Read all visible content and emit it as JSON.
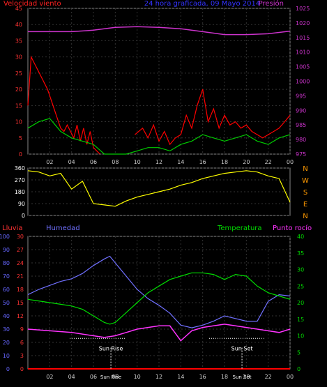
{
  "chart_data": [
    {
      "type": "line",
      "title": "24 hora graficada, 09 Mayo 2014",
      "left_axis_label": "Velocidad viento",
      "right_axis_label": "Presión",
      "left_axis_ticks": [
        "0",
        "5",
        "10",
        "15",
        "20",
        "25",
        "30",
        "35",
        "40",
        "45"
      ],
      "right_axis_ticks": [
        "975",
        "980",
        "985",
        "990",
        "995",
        "1000",
        "1005",
        "1010",
        "1015",
        "1020",
        "1025"
      ],
      "x_tick_labels": [
        "02",
        "04",
        "06",
        "08",
        "10",
        "12",
        "14",
        "16",
        "18",
        "20",
        "22",
        "00"
      ],
      "ylim_left": [
        0,
        45
      ],
      "ylim_right": [
        975,
        1025
      ],
      "colors": {
        "gust": "#ff0000",
        "wind_avg": "#00cc00",
        "wind": "#ffffff",
        "pressure": "#cc33cc"
      },
      "series": [
        {
          "key": "gust",
          "x": [
            0,
            0.3,
            0.6,
            0.9,
            1.2,
            1.5,
            1.8,
            2.1,
            2.4,
            2.7,
            3.0,
            3.3,
            3.6,
            3.9,
            4.2,
            4.5,
            4.8,
            5.1,
            5.4,
            5.7,
            6.0,
            6.3,
            6.6
          ],
          "values": [
            15,
            30,
            28,
            26,
            24,
            22,
            20,
            17,
            14,
            11,
            8,
            7,
            9,
            7,
            5,
            9,
            4,
            8,
            3,
            7,
            2,
            1,
            0
          ]
        },
        {
          "key": "wind_avg",
          "x": [
            0,
            1,
            2,
            2.5,
            3,
            4,
            5,
            6,
            7,
            8,
            9,
            10,
            11,
            12,
            13,
            14,
            15,
            16,
            17,
            18,
            19,
            20,
            21,
            22,
            23,
            24
          ],
          "values": [
            8,
            10,
            11,
            9,
            7,
            5,
            4,
            3,
            0,
            0,
            0,
            1,
            2,
            2,
            1,
            3,
            4,
            6,
            5,
            4,
            5,
            6,
            4,
            3,
            5,
            6
          ]
        },
        {
          "key": "gust_late",
          "x": [
            9.8,
            10.5,
            11,
            11.5,
            12,
            12.5,
            13,
            13.5,
            14,
            14.5,
            15,
            15.5,
            16,
            16.5,
            17,
            17.5,
            18,
            18.5,
            19,
            19.5,
            20,
            20.5,
            21,
            21.5,
            22,
            22.5,
            23,
            23.5,
            24
          ],
          "values": [
            6,
            8,
            5,
            9,
            4,
            7,
            3,
            5,
            6,
            12,
            8,
            15,
            20,
            10,
            14,
            8,
            12,
            9,
            10,
            8,
            9,
            7,
            6,
            5,
            6,
            7,
            8,
            10,
            12
          ]
        },
        {
          "key": "pressure",
          "x": [
            0,
            2,
            4,
            6,
            8,
            10,
            12,
            14,
            16,
            18,
            20,
            22,
            24
          ],
          "values": [
            1017,
            1017,
            1017,
            1017.5,
            1018.5,
            1018.7,
            1018.5,
            1018,
            1017,
            1016,
            1016,
            1016.3,
            1017.2
          ]
        }
      ]
    },
    {
      "type": "scatter",
      "ylim": [
        0,
        360
      ],
      "left_ticks": [
        "0",
        "90",
        "180",
        "270",
        "360"
      ],
      "right_labels": [
        "N",
        "W",
        "S",
        "E",
        "N"
      ],
      "color": "#ffff00",
      "direction_x": [
        0,
        1,
        2,
        3,
        4,
        5,
        6,
        7,
        8,
        9,
        10,
        11,
        12,
        13,
        14,
        15,
        16,
        17,
        18,
        19,
        20,
        21,
        22,
        23,
        24
      ],
      "direction_values": [
        340,
        330,
        300,
        320,
        200,
        260,
        90,
        80,
        70,
        110,
        140,
        160,
        180,
        200,
        230,
        250,
        280,
        300,
        320,
        330,
        340,
        330,
        300,
        280,
        100
      ]
    },
    {
      "type": "line",
      "labels": {
        "rain": "Lluvia",
        "humidity": "Humedad",
        "temperature": "Temperatura",
        "dewpoint": "Punto rocío",
        "sunrise": "Sun Rise",
        "sunset": "Sun Set",
        "sunrise_time": "Sun Rise",
        "sunset_time": "Sun Set"
      },
      "humidity_ticks": [
        "0",
        "10",
        "20",
        "30",
        "40",
        "50",
        "60",
        "70",
        "80",
        "90",
        "100"
      ],
      "rain_ticks": [
        "0",
        "3",
        "6",
        "9",
        "12",
        "15",
        "18",
        "21",
        "24",
        "27",
        "30"
      ],
      "temp_ticks": [
        "0",
        "5",
        "10",
        "15",
        "20",
        "25",
        "30",
        "35",
        "40"
      ],
      "x_tick_labels": [
        "02",
        "04",
        "06",
        "08",
        "10",
        "12",
        "14",
        "16",
        "18",
        "20",
        "22",
        "00"
      ],
      "colors": {
        "humidity": "#7070ff",
        "temperature": "#00dd00",
        "dewpoint": "#ff33ff",
        "rain": "#ff0000",
        "rain_axis": "#ff3333",
        "humidity_axis": "#6666ff",
        "temp_axis": "#00dd00"
      },
      "sunrise_hour": 7.6,
      "sunset_hour": 19.6,
      "humidity": {
        "x": [
          0,
          1,
          2,
          3,
          4,
          5,
          6,
          7,
          7.5,
          8,
          9,
          10,
          11,
          12,
          13,
          14,
          15,
          16,
          17,
          18,
          19,
          20,
          21,
          22,
          23,
          24
        ],
        "values": [
          56,
          60,
          63,
          66,
          68,
          72,
          78,
          83,
          85,
          80,
          70,
          60,
          53,
          48,
          42,
          33,
          31,
          33,
          36,
          40,
          38,
          36,
          36,
          51,
          56,
          55
        ]
      },
      "temperature": {
        "x": [
          0,
          1,
          2,
          3,
          4,
          5,
          6,
          7,
          7.5,
          8,
          9,
          10,
          11,
          12,
          13,
          14,
          15,
          16,
          17,
          18,
          19,
          20,
          21,
          22,
          23,
          24
        ],
        "values": [
          21,
          20.5,
          20,
          19.5,
          19,
          18,
          16,
          14,
          13.5,
          14,
          17,
          20,
          23,
          25,
          27,
          28,
          29,
          29,
          28.5,
          27,
          28.5,
          28,
          25,
          23,
          22,
          21
        ]
      },
      "dewpoint": {
        "x": [
          0,
          2,
          4,
          6,
          7,
          8,
          9,
          10,
          11,
          12,
          13,
          14,
          14.5,
          15,
          16,
          17,
          18,
          19,
          20,
          21,
          22,
          23,
          24
        ],
        "values": [
          12,
          11.5,
          11,
          10,
          9.5,
          10,
          11,
          12,
          12.5,
          13,
          13,
          8.5,
          10,
          11.5,
          12.5,
          13,
          13.5,
          13,
          12.5,
          12,
          11.5,
          11,
          12
        ]
      },
      "rain": {
        "x": [
          0,
          24
        ],
        "values": [
          0,
          0
        ]
      }
    }
  ]
}
